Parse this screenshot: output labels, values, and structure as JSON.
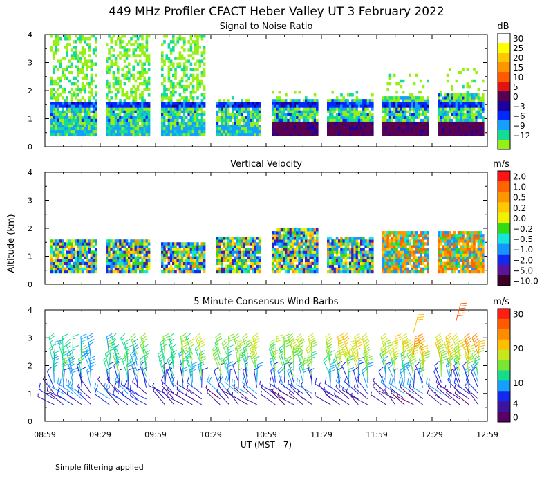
{
  "title": "449 MHz Profiler CFACT Heber Valley UT  3 February 2022",
  "ylabel": "Altitude (km)",
  "xlabel": "UT  (MST - 7)",
  "footnote": "Simple filtering applied",
  "chart_data": [
    {
      "type": "heatmap",
      "title": "Signal to Noise Ratio",
      "xlim": [
        0,
        240
      ],
      "ylim": [
        0,
        4
      ],
      "y_ticks": [
        0,
        1,
        2,
        3,
        4
      ],
      "x_tick_labels": [
        "08:59",
        "09:29",
        "09:59",
        "10:29",
        "10:59",
        "11:29",
        "11:59",
        "12:29",
        "12:59"
      ],
      "colorbar": {
        "unit": "dB",
        "labels": [
          "30",
          "25",
          "20",
          "15",
          "10",
          "5",
          "0",
          "−3",
          "−6",
          "−9",
          "−12"
        ],
        "colors": [
          "#ffffff",
          "#ffff00",
          "#ffc800",
          "#ff9600",
          "#ff5a00",
          "#e01414",
          "#5a0050",
          "#1c00a0",
          "#0028ff",
          "#14a0ff",
          "#14dc96",
          "#96f014"
        ]
      },
      "segments": [
        {
          "start_min": 3,
          "end_min": 27,
          "top_km": 1.6,
          "fringe_top_km": 4.0
        },
        {
          "start_min": 33,
          "end_min": 57,
          "top_km": 1.6,
          "fringe_top_km": 4.0
        },
        {
          "start_min": 63,
          "end_min": 87,
          "top_km": 1.6,
          "fringe_top_km": 4.0
        },
        {
          "start_min": 93,
          "end_min": 117,
          "top_km": 1.6,
          "fringe_top_km": 1.8
        },
        {
          "start_min": 123,
          "end_min": 147,
          "top_km": 1.7,
          "fringe_top_km": 2.1
        },
        {
          "start_min": 153,
          "end_min": 177,
          "top_km": 1.7,
          "fringe_top_km": 2.0
        },
        {
          "start_min": 183,
          "end_min": 207,
          "top_km": 1.8,
          "fringe_top_km": 2.6
        },
        {
          "start_min": 213,
          "end_min": 237,
          "top_km": 1.9,
          "fringe_top_km": 2.8
        }
      ]
    },
    {
      "type": "heatmap",
      "title": "Vertical Velocity",
      "xlim": [
        0,
        240
      ],
      "ylim": [
        0,
        4
      ],
      "y_ticks": [
        0,
        1,
        2,
        3,
        4
      ],
      "x_tick_labels": [
        "08:59",
        "09:29",
        "09:59",
        "10:29",
        "10:59",
        "11:29",
        "11:59",
        "12:29",
        "12:59"
      ],
      "colorbar": {
        "unit": "m/s",
        "labels": [
          "2.0",
          "1.0",
          "0.5",
          "0.2",
          "0.0",
          "−0.2",
          "−0.5",
          "−1.0",
          "−2.0",
          "−5.0",
          "−10.0"
        ],
        "colors": [
          "#ff1414",
          "#ff6400",
          "#ff9600",
          "#ffc800",
          "#f0f000",
          "#32dc14",
          "#14e6dc",
          "#1496ff",
          "#1428f0",
          "#5a14a0",
          "#3c0028"
        ]
      },
      "segments": [
        {
          "start_min": 3,
          "end_min": 27,
          "top_km": 1.6
        },
        {
          "start_min": 33,
          "end_min": 57,
          "top_km": 1.6
        },
        {
          "start_min": 63,
          "end_min": 87,
          "top_km": 1.5
        },
        {
          "start_min": 93,
          "end_min": 117,
          "top_km": 1.7
        },
        {
          "start_min": 123,
          "end_min": 147,
          "top_km": 2.0
        },
        {
          "start_min": 153,
          "end_min": 177,
          "top_km": 1.7
        },
        {
          "start_min": 183,
          "end_min": 207,
          "top_km": 1.9
        },
        {
          "start_min": 213,
          "end_min": 237,
          "top_km": 1.9
        }
      ]
    },
    {
      "type": "scatter",
      "title": "5 Minute Consensus Wind Barbs",
      "xlim": [
        0,
        240
      ],
      "ylim": [
        0,
        4
      ],
      "y_ticks": [
        0,
        1,
        2,
        3,
        4
      ],
      "x_tick_labels": [
        "08:59",
        "09:29",
        "09:59",
        "10:29",
        "10:59",
        "11:29",
        "11:59",
        "12:29",
        "12:59"
      ],
      "colorbar": {
        "unit": "m/s",
        "labels": [
          "30",
          "20",
          "10",
          "4",
          "0"
        ],
        "label_values": [
          30,
          20,
          10,
          4,
          0
        ],
        "colors": [
          "#ff1e14",
          "#ff5a00",
          "#ff8c00",
          "#ffbe00",
          "#c8e61e",
          "#78e632",
          "#14dc8c",
          "#14a0ff",
          "#1428f0",
          "#3c14a0",
          "#5a0064"
        ]
      },
      "barb_times_min": [
        5,
        10,
        15,
        20,
        25,
        35,
        40,
        45,
        50,
        55,
        65,
        70,
        75,
        80,
        85,
        95,
        100,
        105,
        110,
        115,
        125,
        130,
        135,
        140,
        145,
        155,
        160,
        165,
        170,
        175,
        185,
        190,
        195,
        200,
        205,
        215,
        220,
        225,
        230,
        235
      ],
      "barb_heights_km": [
        0.6,
        0.8,
        1.0,
        1.2,
        1.4,
        1.6,
        1.8,
        2.0,
        2.2,
        2.4
      ],
      "upper_barbs": [
        {
          "time_min": 200,
          "height_km": 3.2,
          "speed_ms": 22
        },
        {
          "time_min": 223,
          "height_km": 3.6,
          "speed_ms": 28
        }
      ]
    }
  ]
}
